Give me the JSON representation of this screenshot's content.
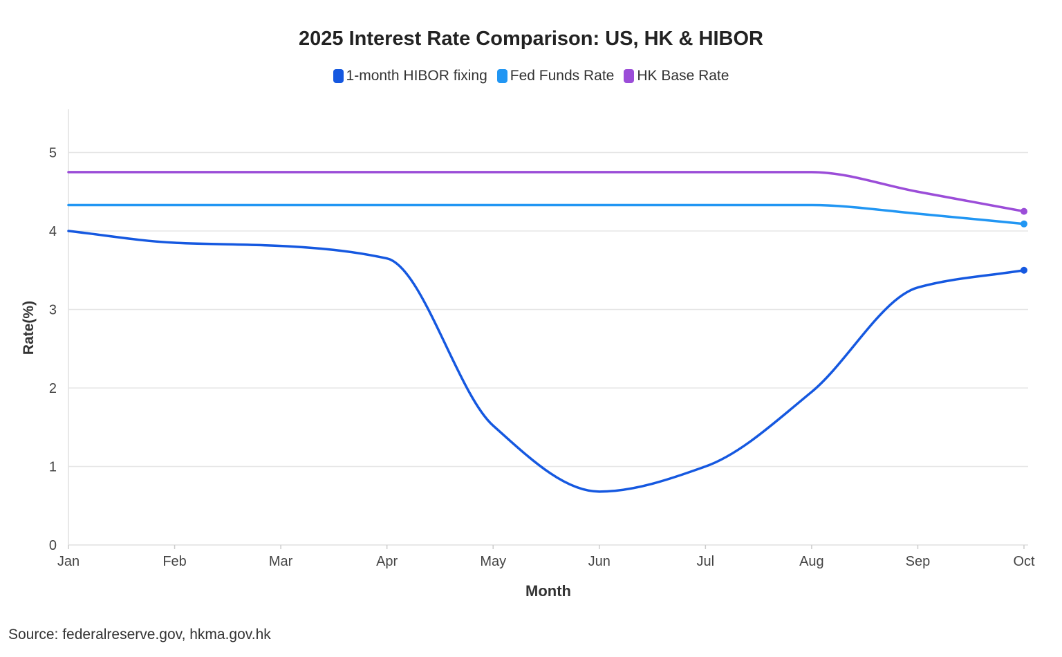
{
  "chart_data": {
    "type": "line",
    "title": "2025 Interest Rate Comparison: US, HK & HIBOR",
    "xlabel": "Month",
    "ylabel": "Rate(%)",
    "categories": [
      "Jan",
      "Feb",
      "Mar",
      "Apr",
      "May",
      "Jun",
      "Jul",
      "Aug",
      "Sep",
      "Oct"
    ],
    "yticks": [
      0,
      1,
      2,
      3,
      4,
      5
    ],
    "ylim": [
      0,
      5.5
    ],
    "grid": "horizontal",
    "legend_position": "top-center",
    "series": [
      {
        "name": "1-month HIBOR fixing",
        "color": "#1558e0",
        "values": [
          4.0,
          3.85,
          3.81,
          3.65,
          1.52,
          0.68,
          1.0,
          1.95,
          3.28,
          3.5
        ]
      },
      {
        "name": "Fed Funds Rate",
        "color": "#2196f3",
        "values": [
          4.33,
          4.33,
          4.33,
          4.33,
          4.33,
          4.33,
          4.33,
          4.33,
          4.22,
          4.09
        ]
      },
      {
        "name": "HK Base Rate",
        "color": "#9b4dd8",
        "values": [
          4.75,
          4.75,
          4.75,
          4.75,
          4.75,
          4.75,
          4.75,
          4.75,
          4.5,
          4.25
        ]
      }
    ],
    "source": "Source: federalreserve.gov, hkma.gov.hk"
  }
}
